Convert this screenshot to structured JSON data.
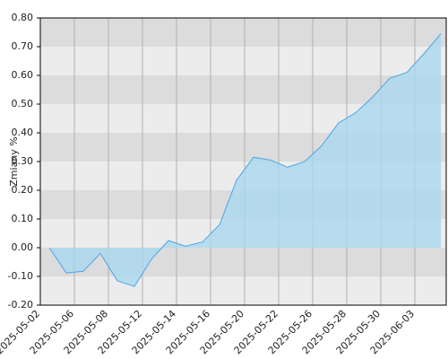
{
  "chart_data": {
    "type": "area",
    "ylabel": "Zmiany %",
    "xtick_labels": [
      "2025-05-02",
      "2025-05-06",
      "2025-05-08",
      "2025-05-12",
      "2025-05-14",
      "2025-05-16",
      "2025-05-20",
      "2025-05-22",
      "2025-05-26",
      "2025-05-28",
      "2025-05-30",
      "2025-06-03"
    ],
    "values": [
      0.0,
      -0.088,
      -0.082,
      -0.02,
      -0.115,
      -0.135,
      -0.04,
      0.025,
      0.005,
      0.02,
      0.08,
      0.235,
      0.315,
      0.305,
      0.28,
      0.3,
      0.355,
      0.435,
      0.47,
      0.525,
      0.59,
      0.61,
      0.675,
      0.745
    ],
    "line_color": "#4da6e8",
    "fill_color": "#a9d8ee",
    "ylim": [
      -0.2,
      0.8
    ],
    "yticks": [
      {
        "value": -0.2,
        "label": "-0.20"
      },
      {
        "value": -0.1,
        "label": "-0.10"
      },
      {
        "value": 0,
        "label": "0.00"
      },
      {
        "value": 0.1,
        "label": "0.10"
      },
      {
        "value": 0.2,
        "label": "0.20"
      },
      {
        "value": 0.3,
        "label": "0.30"
      },
      {
        "value": 0.4,
        "label": "0.40"
      },
      {
        "value": 0.5,
        "label": "0.50"
      },
      {
        "value": 0.6,
        "label": "0.60"
      },
      {
        "value": 0.7,
        "label": "0.70"
      },
      {
        "value": 0.8,
        "label": "0.80"
      }
    ],
    "grid": true
  }
}
